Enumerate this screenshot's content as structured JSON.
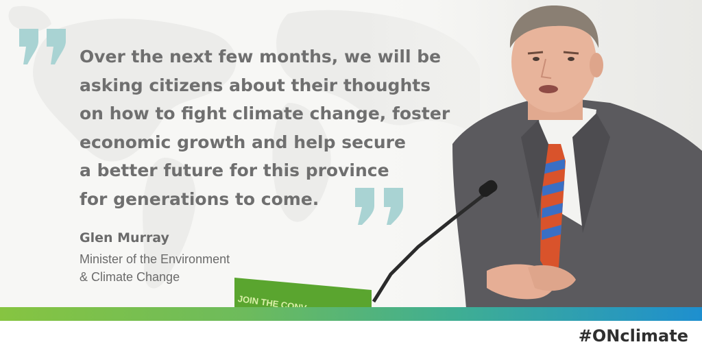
{
  "quote": {
    "lines": [
      "Over the next few months, we will be",
      "asking citizens about their thoughts",
      "on how to fight climate change, foster",
      "economic growth and help secure",
      "a better future for this province",
      "for generations to come."
    ]
  },
  "speaker": {
    "name": "Glen Murray",
    "title_line1": "Minister of the Environment",
    "title_line2": "& Climate Change"
  },
  "podium_sign": "JOIN THE CONV",
  "hashtag": "#ONclimate",
  "colors": {
    "quote_mark": "#a9d3d3",
    "text": "#6f6f6f",
    "bar_start": "#86c441",
    "bar_end": "#1e8fcf",
    "suit": "#5b5a5e",
    "tie_red": "#d9532b",
    "tie_blue": "#3a6fc4"
  },
  "icons": [
    "open-quote-icon",
    "close-quote-icon"
  ]
}
